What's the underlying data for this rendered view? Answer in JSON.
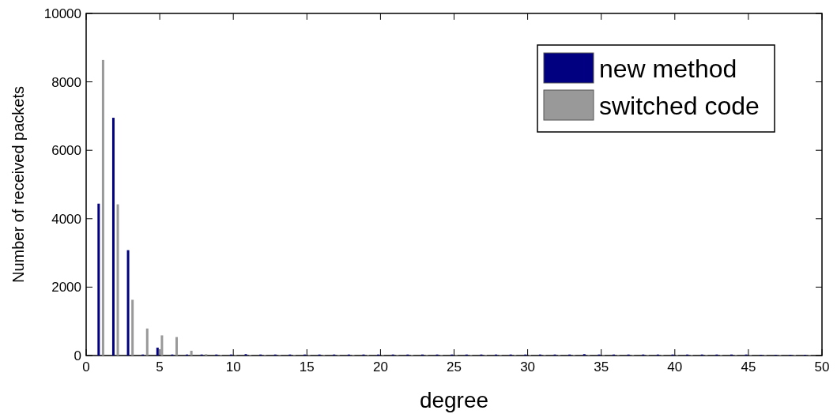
{
  "chart_data": {
    "type": "bar",
    "xlabel": "degree",
    "ylabel": "Number of received packets",
    "x": [
      1,
      2,
      3,
      4,
      5,
      6,
      7,
      8,
      9,
      10,
      11,
      12,
      13,
      14,
      15,
      16,
      17,
      18,
      19,
      20,
      21,
      22,
      23,
      24,
      25,
      26,
      27,
      28,
      29,
      30,
      31,
      32,
      33,
      34,
      35,
      36,
      37,
      38,
      39,
      40,
      41,
      42,
      43,
      44,
      45,
      46,
      47,
      48,
      49
    ],
    "series": [
      {
        "name": "new method",
        "color": "#000080",
        "values": [
          4440,
          6950,
          3080,
          30,
          230,
          30,
          30,
          30,
          30,
          30,
          40,
          30,
          30,
          30,
          30,
          30,
          30,
          30,
          30,
          30,
          30,
          30,
          30,
          30,
          30,
          30,
          30,
          30,
          30,
          30,
          30,
          30,
          30,
          40,
          30,
          30,
          30,
          30,
          30,
          30,
          30,
          30,
          30,
          30,
          30,
          20,
          20,
          20,
          20
        ]
      },
      {
        "name": "switched code",
        "color": "#999999",
        "values": [
          8640,
          4420,
          1630,
          790,
          590,
          540,
          140,
          40,
          20,
          20,
          20,
          20,
          20,
          20,
          20,
          20,
          20,
          20,
          20,
          20,
          20,
          20,
          20,
          20,
          20,
          20,
          20,
          20,
          20,
          20,
          20,
          20,
          20,
          20,
          20,
          20,
          20,
          20,
          20,
          20,
          20,
          20,
          20,
          20,
          20,
          20,
          20,
          20,
          20
        ]
      }
    ],
    "xlim": [
      0,
      50
    ],
    "xticks": [
      0,
      5,
      10,
      15,
      20,
      25,
      30,
      35,
      40,
      45,
      50
    ],
    "ylim": [
      0,
      10000
    ],
    "yticks": [
      0,
      2000,
      4000,
      6000,
      8000,
      10000
    ],
    "legend": "top right"
  }
}
